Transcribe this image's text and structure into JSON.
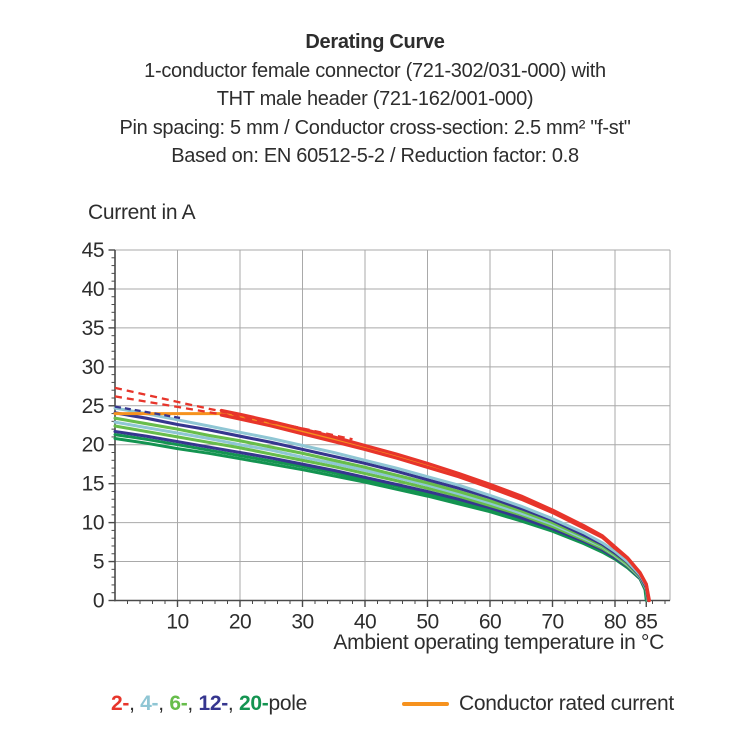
{
  "title_block": {
    "title": "Derating Curve",
    "subtitle_lines": [
      "1-conductor female connector (721-302/031-000) with",
      "THT male header (721-162/001-000)",
      "Pin spacing: 5 mm / Conductor cross-section: 2.5 mm² \"f-st\"",
      "Based on: EN 60512-5-2 / Reduction factor: 0.8"
    ]
  },
  "legend": {
    "items": [
      {
        "label": "2-",
        "color": "#e7352b"
      },
      {
        "label": "4-",
        "color": "#8fc6d4"
      },
      {
        "label": "6-",
        "color": "#67bd4b"
      },
      {
        "label": "12-",
        "color": "#36368f"
      },
      {
        "label": "20-",
        "color": "#149451"
      }
    ],
    "separator": ", ",
    "suffix": "pole",
    "rated_label": "Conductor rated current",
    "rated_color": "#f6921e"
  },
  "colors": {
    "grid": "#a9a9a9",
    "axis": "#4a4a4a",
    "text": "#2d2d2d",
    "red": "#e7352b",
    "orange": "#f6921e",
    "cyan": "#8fc6d4",
    "light_green": "#67bd4b",
    "dark_blue": "#36368f",
    "dark_green": "#149451"
  },
  "chart_data": {
    "type": "line",
    "title": "Derating Curve",
    "xlabel": "Ambient operating temperature in °C",
    "ylabel": "Current in A",
    "xlim": [
      0,
      88.8
    ],
    "ylim": [
      0,
      45
    ],
    "x_ticks": [
      10,
      20,
      30,
      40,
      50,
      60,
      70,
      80,
      85
    ],
    "y_ticks": [
      0,
      5,
      10,
      15,
      20,
      25,
      30,
      35,
      40,
      45
    ],
    "x_minor_step": 2,
    "y_minor_step": 1,
    "grid": true,
    "legend_position": "bottom",
    "series": [
      {
        "id": "pole20-b",
        "name": "20-pole (lower)",
        "color": "#149451",
        "width": 3,
        "dash": null,
        "points": [
          [
            0,
            20.8
          ],
          [
            5,
            20.2
          ],
          [
            10,
            19.5
          ],
          [
            15,
            18.9
          ],
          [
            20,
            18.2
          ],
          [
            25,
            17.5
          ],
          [
            30,
            16.8
          ],
          [
            35,
            16.0
          ],
          [
            40,
            15.2
          ],
          [
            45,
            14.3
          ],
          [
            50,
            13.4
          ],
          [
            55,
            12.4
          ],
          [
            60,
            11.4
          ],
          [
            65,
            10.2
          ],
          [
            70,
            8.9
          ],
          [
            75,
            7.3
          ],
          [
            78,
            6.2
          ],
          [
            80,
            5.3
          ],
          [
            82,
            4.2
          ],
          [
            84,
            2.8
          ],
          [
            84.8,
            1.4
          ],
          [
            85,
            0
          ]
        ]
      },
      {
        "id": "pole20-a",
        "name": "20-pole (upper)",
        "color": "#149451",
        "width": 3,
        "dash": null,
        "points": [
          [
            0,
            21.3
          ],
          [
            5,
            20.7
          ],
          [
            10,
            20.0
          ],
          [
            15,
            19.3
          ],
          [
            20,
            18.6
          ],
          [
            25,
            17.9
          ],
          [
            30,
            17.2
          ],
          [
            35,
            16.4
          ],
          [
            40,
            15.5
          ],
          [
            45,
            14.7
          ],
          [
            50,
            13.7
          ],
          [
            55,
            12.7
          ],
          [
            60,
            11.6
          ],
          [
            65,
            10.4
          ],
          [
            70,
            9.1
          ],
          [
            75,
            7.5
          ],
          [
            78,
            6.4
          ],
          [
            80,
            5.4
          ],
          [
            82,
            4.3
          ],
          [
            84,
            2.8
          ],
          [
            85,
            1.2
          ],
          [
            85.1,
            0
          ]
        ]
      },
      {
        "id": "pole12-b",
        "name": "12-pole (lower)",
        "color": "#36368f",
        "width": 3.1,
        "dash": null,
        "points": [
          [
            0,
            21.7
          ],
          [
            5,
            21.1
          ],
          [
            10,
            20.4
          ],
          [
            15,
            19.7
          ],
          [
            20,
            19.0
          ],
          [
            25,
            18.3
          ],
          [
            30,
            17.5
          ],
          [
            35,
            16.7
          ],
          [
            40,
            15.8
          ],
          [
            45,
            14.9
          ],
          [
            50,
            14.0
          ],
          [
            55,
            13.0
          ],
          [
            60,
            11.9
          ],
          [
            65,
            10.6
          ],
          [
            70,
            9.2
          ],
          [
            75,
            7.6
          ],
          [
            78,
            6.5
          ],
          [
            80,
            5.5
          ],
          [
            82,
            4.4
          ],
          [
            84,
            2.9
          ],
          [
            85,
            1.3
          ],
          [
            85.15,
            0
          ]
        ]
      },
      {
        "id": "pole6-b",
        "name": "6-pole (lower)",
        "color": "#67bd4b",
        "width": 3.1,
        "dash": null,
        "points": [
          [
            0,
            22.4
          ],
          [
            5,
            21.7
          ],
          [
            10,
            21.0
          ],
          [
            15,
            20.3
          ],
          [
            20,
            19.6
          ],
          [
            25,
            18.8
          ],
          [
            30,
            18.0
          ],
          [
            35,
            17.2
          ],
          [
            40,
            16.3
          ],
          [
            45,
            15.4
          ],
          [
            50,
            14.4
          ],
          [
            55,
            13.4
          ],
          [
            60,
            12.2
          ],
          [
            65,
            11.0
          ],
          [
            70,
            9.5
          ],
          [
            75,
            7.8
          ],
          [
            78,
            6.7
          ],
          [
            80,
            5.7
          ],
          [
            82,
            4.5
          ],
          [
            84,
            3.0
          ],
          [
            85,
            1.4
          ],
          [
            85.2,
            0
          ]
        ]
      },
      {
        "id": "pole4-b",
        "name": "4-pole (lower)",
        "color": "#8fc6d4",
        "width": 3,
        "dash": null,
        "points": [
          [
            0,
            22.9
          ],
          [
            5,
            22.2
          ],
          [
            10,
            21.5
          ],
          [
            15,
            20.8
          ],
          [
            20,
            20.0
          ],
          [
            25,
            19.3
          ],
          [
            30,
            18.4
          ],
          [
            35,
            17.6
          ],
          [
            40,
            16.7
          ],
          [
            45,
            15.8
          ],
          [
            50,
            14.8
          ],
          [
            55,
            13.7
          ],
          [
            60,
            12.5
          ],
          [
            65,
            11.2
          ],
          [
            70,
            9.8
          ],
          [
            75,
            8.0
          ],
          [
            78,
            6.9
          ],
          [
            80,
            5.8
          ],
          [
            82,
            4.6
          ],
          [
            84,
            3.0
          ],
          [
            85,
            1.5
          ],
          [
            85.25,
            0
          ]
        ]
      },
      {
        "id": "pole6-a",
        "name": "6-pole (upper)",
        "color": "#67bd4b",
        "width": 3.1,
        "dash": null,
        "points": [
          [
            0,
            23.4
          ],
          [
            5,
            22.7
          ],
          [
            10,
            22.0
          ],
          [
            15,
            21.2
          ],
          [
            20,
            20.5
          ],
          [
            25,
            19.7
          ],
          [
            30,
            18.9
          ],
          [
            35,
            18.0
          ],
          [
            40,
            17.1
          ],
          [
            45,
            16.1
          ],
          [
            50,
            15.1
          ],
          [
            55,
            14.0
          ],
          [
            60,
            12.8
          ],
          [
            65,
            11.5
          ],
          [
            70,
            10.0
          ],
          [
            75,
            8.2
          ],
          [
            78,
            7.0
          ],
          [
            80,
            5.9
          ],
          [
            82,
            4.7
          ],
          [
            84,
            3.1
          ],
          [
            85,
            1.6
          ],
          [
            85.3,
            0
          ]
        ]
      },
      {
        "id": "pole12-a",
        "name": "12-pole (upper)",
        "color": "#36368f",
        "width": 3.1,
        "dash": null,
        "points": [
          [
            0,
            24.1
          ],
          [
            5,
            23.4
          ],
          [
            10,
            22.6
          ],
          [
            15,
            21.9
          ],
          [
            20,
            21.1
          ],
          [
            25,
            20.3
          ],
          [
            30,
            19.4
          ],
          [
            35,
            18.5
          ],
          [
            40,
            17.6
          ],
          [
            45,
            16.6
          ],
          [
            50,
            15.5
          ],
          [
            55,
            14.4
          ],
          [
            60,
            13.2
          ],
          [
            65,
            11.8
          ],
          [
            70,
            10.3
          ],
          [
            75,
            8.4
          ],
          [
            78,
            7.2
          ],
          [
            80,
            6.1
          ],
          [
            82,
            4.9
          ],
          [
            84,
            3.2
          ],
          [
            85,
            1.7
          ],
          [
            85.35,
            0
          ]
        ]
      },
      {
        "id": "pole4-a",
        "name": "4-pole (upper)",
        "color": "#8fc6d4",
        "width": 3,
        "dash": null,
        "points": [
          [
            0,
            24.7
          ],
          [
            5,
            24.0
          ],
          [
            10,
            23.2
          ],
          [
            15,
            22.4
          ],
          [
            20,
            21.6
          ],
          [
            25,
            20.8
          ],
          [
            30,
            19.9
          ],
          [
            35,
            19.0
          ],
          [
            40,
            18.0
          ],
          [
            45,
            17.0
          ],
          [
            50,
            15.9
          ],
          [
            55,
            14.8
          ],
          [
            60,
            13.5
          ],
          [
            65,
            12.1
          ],
          [
            70,
            10.5
          ],
          [
            75,
            8.7
          ],
          [
            78,
            7.4
          ],
          [
            80,
            6.3
          ],
          [
            82,
            5.0
          ],
          [
            84,
            3.3
          ],
          [
            85,
            1.9
          ],
          [
            85.4,
            0
          ]
        ]
      },
      {
        "id": "rated-current",
        "name": "Conductor rated current",
        "color": "#f6921e",
        "width": 3,
        "dash": null,
        "points": [
          [
            0,
            24.0
          ],
          [
            17,
            24.0
          ],
          [
            20,
            23.6
          ],
          [
            25,
            22.6
          ],
          [
            30,
            21.7
          ],
          [
            35,
            20.7
          ],
          [
            40,
            19.6
          ],
          [
            45,
            18.5
          ],
          [
            50,
            17.3
          ],
          [
            55,
            16.1
          ],
          [
            60,
            14.7
          ],
          [
            65,
            13.2
          ],
          [
            70,
            11.5
          ],
          [
            75,
            9.4
          ],
          [
            78,
            8.1
          ],
          [
            80,
            6.8
          ],
          [
            82,
            5.4
          ],
          [
            84,
            3.6
          ],
          [
            85,
            2.1
          ],
          [
            85.45,
            0
          ]
        ]
      },
      {
        "id": "pole2-b",
        "name": "2-pole (lower)",
        "color": "#e7352b",
        "width": 3.2,
        "dash": null,
        "points": [
          [
            17,
            23.8
          ],
          [
            20,
            23.3
          ],
          [
            25,
            22.4
          ],
          [
            30,
            21.4
          ],
          [
            35,
            20.4
          ],
          [
            40,
            19.4
          ],
          [
            45,
            18.3
          ],
          [
            50,
            17.1
          ],
          [
            55,
            15.9
          ],
          [
            60,
            14.5
          ],
          [
            65,
            13.0
          ],
          [
            70,
            11.3
          ],
          [
            75,
            9.3
          ],
          [
            78,
            8.1
          ],
          [
            80,
            6.7
          ],
          [
            82,
            5.4
          ],
          [
            84,
            3.5
          ],
          [
            85,
            2.0
          ],
          [
            85.4,
            0
          ]
        ]
      },
      {
        "id": "pole2-a",
        "name": "2-pole (upper)",
        "color": "#e7352b",
        "width": 3.2,
        "dash": null,
        "points": [
          [
            17,
            24.4
          ],
          [
            20,
            23.9
          ],
          [
            25,
            23.0
          ],
          [
            30,
            22.0
          ],
          [
            35,
            21.0
          ],
          [
            40,
            19.9
          ],
          [
            45,
            18.8
          ],
          [
            50,
            17.6
          ],
          [
            55,
            16.3
          ],
          [
            60,
            14.9
          ],
          [
            65,
            13.4
          ],
          [
            70,
            11.6
          ],
          [
            75,
            9.6
          ],
          [
            78,
            8.3
          ],
          [
            80,
            6.9
          ],
          [
            82,
            5.5
          ],
          [
            84,
            3.6
          ],
          [
            85,
            2.1
          ],
          [
            85.5,
            0
          ]
        ]
      },
      {
        "id": "pole2-dashed-b",
        "name": "2-pole dashed (lower)",
        "color": "#e7352b",
        "width": 2.3,
        "dash": "7 5",
        "points": [
          [
            0,
            26.2
          ],
          [
            10,
            24.85
          ],
          [
            20,
            23.5
          ],
          [
            28,
            22.45
          ]
        ]
      },
      {
        "id": "pole2-dashed-a",
        "name": "2-pole dashed (upper)",
        "color": "#e7352b",
        "width": 2.3,
        "dash": "7 5",
        "points": [
          [
            0,
            27.3
          ],
          [
            10,
            25.5
          ],
          [
            20,
            23.75
          ],
          [
            30,
            22.1
          ],
          [
            38,
            20.7
          ]
        ]
      },
      {
        "id": "pole12-dashed",
        "name": "12-pole dashed",
        "color": "#36368f",
        "width": 2.3,
        "dash": "6 4",
        "points": [
          [
            0,
            24.9
          ],
          [
            5,
            24.2
          ],
          [
            11,
            23.35
          ]
        ]
      }
    ]
  }
}
